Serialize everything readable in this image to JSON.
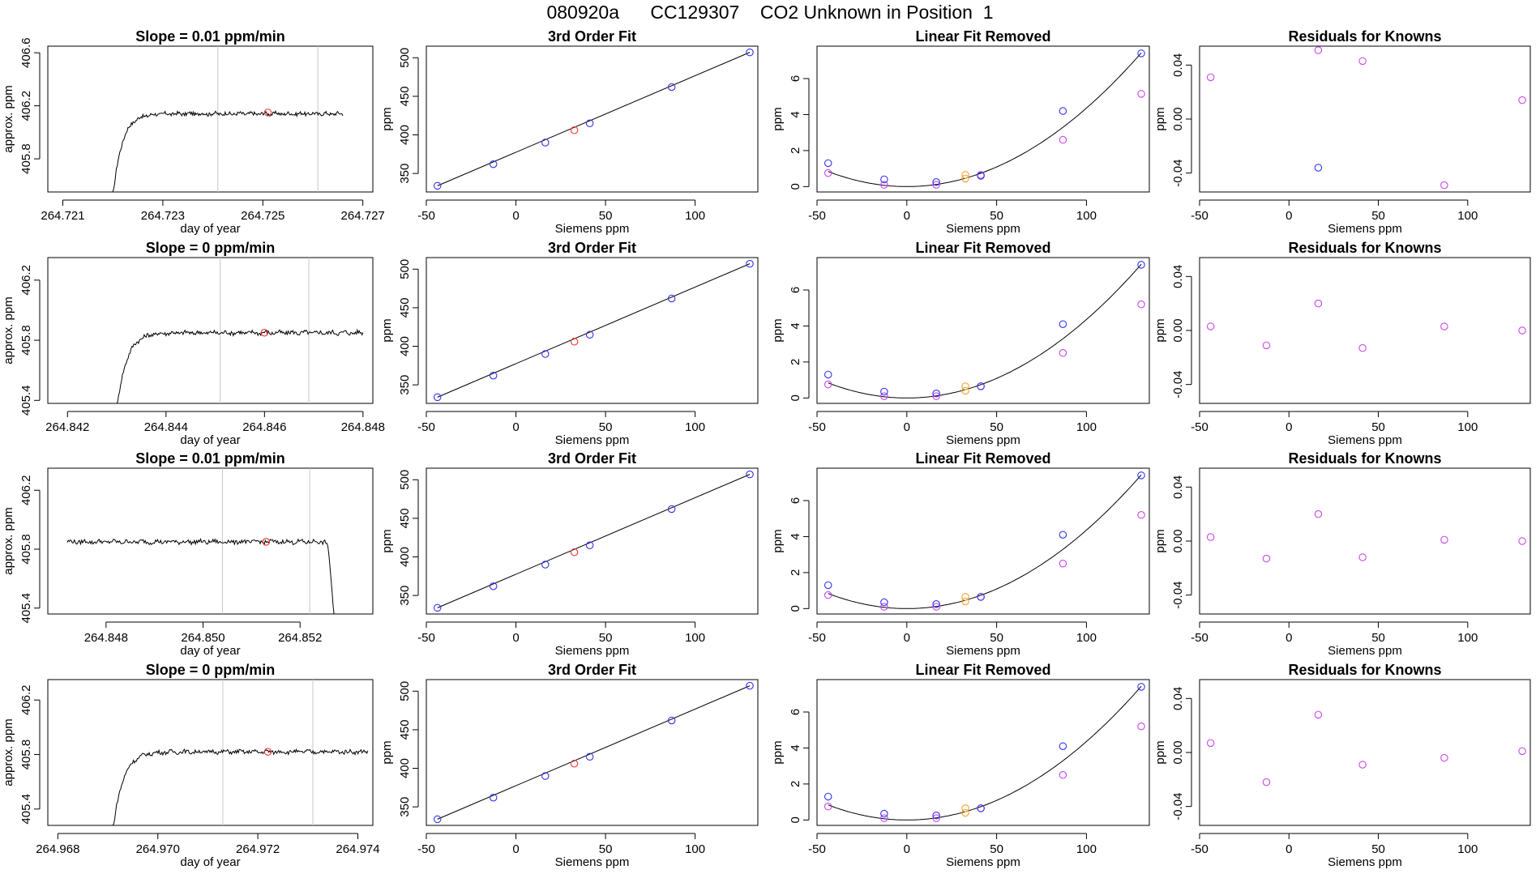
{
  "header": {
    "run_id": "080920a",
    "cylinder": "CC129307",
    "description": "CO2 Unknown in Position  1"
  },
  "labels": {
    "xlabel_time": "day of year",
    "ylabel_time": "approx. ppm",
    "xlabel_siemens": "Siemens ppm",
    "ylabel_ppm": "ppm",
    "title_fit": "3rd Order Fit",
    "title_linear": "Linear Fit Removed",
    "title_resid": "Residuals for Knowns"
  },
  "colors": {
    "known": "#3333ee",
    "unknown": "#ee3333",
    "residual": "#cc44ee",
    "orange": "#f0a030",
    "guide": "#c8c8c8",
    "line": "#000000"
  },
  "chart_data": [
    {
      "row": 1,
      "time_series": {
        "type": "line",
        "title": "Slope =  0.01  ppm/min",
        "xlabel": "day of year",
        "ylabel": "approx. ppm",
        "xlim": [
          264.7207,
          264.7272
        ],
        "ylim": [
          405.55,
          406.65
        ],
        "xticks": [
          "264.721",
          "264.723",
          "264.725",
          "264.727"
        ],
        "xtick_values": [
          264.721,
          264.723,
          264.725,
          264.727
        ],
        "yticks": [
          "405.8",
          "406.2",
          "406.6"
        ],
        "ytick_values": [
          405.8,
          406.2,
          406.6
        ],
        "guides": [
          264.7241,
          264.7261
        ],
        "shape": "rise",
        "x_start": 264.722,
        "x_end": 264.7266,
        "plateau": 406.14,
        "unknown_point": [
          264.7251,
          406.15
        ]
      },
      "fit": {
        "type": "scatter",
        "title": "3rd Order Fit",
        "xlabel": "Siemens ppm",
        "ylabel": "ppm",
        "knowns": [
          [
            -43.8,
            334
          ],
          [
            -12.6,
            362
          ],
          [
            16.4,
            390
          ],
          [
            41.2,
            415
          ],
          [
            86.9,
            462
          ],
          [
            130.5,
            507
          ]
        ],
        "unknown": [
          32.6,
          406
        ]
      },
      "linear_removed": {
        "type": "scatter",
        "title": "Linear Fit Removed",
        "xlabel": "Siemens ppm",
        "ylabel": "ppm",
        "blue": [
          [
            -43.8,
            1.3
          ],
          [
            -12.6,
            0.4
          ],
          [
            16.4,
            0.25
          ],
          [
            41.2,
            0.6
          ],
          [
            86.9,
            4.2
          ],
          [
            130.5,
            7.4
          ]
        ],
        "purple": [
          [
            -43.8,
            0.75
          ],
          [
            -12.6,
            0.1
          ],
          [
            16.4,
            0.1
          ],
          [
            41.2,
            0.65
          ],
          [
            86.9,
            2.6
          ],
          [
            130.5,
            5.15
          ]
        ],
        "orange": [
          [
            32.6,
            0.65
          ],
          [
            32.6,
            0.45
          ]
        ]
      },
      "residuals": {
        "type": "scatter",
        "title": "Residuals for Knowns",
        "xlabel": "Siemens ppm",
        "ylabel": "ppm",
        "purple": [
          [
            -43.8,
            0.031
          ],
          [
            16.4,
            0.051
          ],
          [
            41.2,
            0.043
          ],
          [
            86.9,
            -0.049
          ],
          [
            130.5,
            0.014
          ]
        ],
        "blue": [
          [
            16.4,
            -0.036
          ]
        ]
      }
    },
    {
      "row": 2,
      "time_series": {
        "type": "line",
        "title": "Slope =  0  ppm/min",
        "xlabel": "day of year",
        "ylabel": "approx. ppm",
        "xlim": [
          264.8416,
          264.8482
        ],
        "ylim": [
          405.38,
          406.35
        ],
        "xticks": [
          "264.842",
          "264.844",
          "264.846",
          "264.848"
        ],
        "xtick_values": [
          264.842,
          264.844,
          264.846,
          264.848
        ],
        "yticks": [
          "405.4",
          "405.8",
          "406.2"
        ],
        "ytick_values": [
          405.4,
          405.8,
          406.2
        ],
        "guides": [
          264.8451,
          264.8469
        ],
        "shape": "rise",
        "x_start": 264.843,
        "x_end": 264.848,
        "plateau": 405.85,
        "unknown_point": [
          264.846,
          405.85
        ]
      },
      "fit": {
        "type": "scatter",
        "title": "3rd Order Fit",
        "xlabel": "Siemens ppm",
        "ylabel": "ppm",
        "knowns": [
          [
            -43.8,
            334
          ],
          [
            -12.6,
            362
          ],
          [
            16.4,
            390
          ],
          [
            41.2,
            415
          ],
          [
            86.9,
            462
          ],
          [
            130.5,
            507
          ]
        ],
        "unknown": [
          32.6,
          406
        ]
      },
      "linear_removed": {
        "type": "scatter",
        "title": "Linear Fit Removed",
        "xlabel": "Siemens ppm",
        "ylabel": "ppm",
        "blue": [
          [
            -43.8,
            1.3
          ],
          [
            -12.6,
            0.35
          ],
          [
            16.4,
            0.25
          ],
          [
            41.2,
            0.65
          ],
          [
            86.9,
            4.1
          ],
          [
            130.5,
            7.4
          ]
        ],
        "purple": [
          [
            -43.8,
            0.75
          ],
          [
            -12.6,
            0.1
          ],
          [
            16.4,
            0.1
          ],
          [
            41.2,
            0.65
          ],
          [
            86.9,
            2.5
          ],
          [
            130.5,
            5.2
          ]
        ],
        "orange": [
          [
            32.6,
            0.65
          ],
          [
            32.6,
            0.4
          ]
        ]
      },
      "residuals": {
        "type": "scatter",
        "title": "Residuals for Knowns",
        "xlabel": "Siemens ppm",
        "ylabel": "ppm",
        "purple": [
          [
            -43.8,
            0.003
          ],
          [
            -12.6,
            -0.011
          ],
          [
            16.4,
            0.02
          ],
          [
            41.2,
            -0.013
          ],
          [
            86.9,
            0.003
          ],
          [
            130.5,
            0.0
          ]
        ],
        "blue": []
      }
    },
    {
      "row": 3,
      "time_series": {
        "type": "line",
        "title": "Slope =  0.01  ppm/min",
        "xlabel": "day of year",
        "ylabel": "approx. ppm",
        "xlim": [
          264.8468,
          264.8535
        ],
        "ylim": [
          405.36,
          406.35
        ],
        "xticks": [
          "264.848",
          "264.850",
          "264.852"
        ],
        "xtick_values": [
          264.848,
          264.85,
          264.852
        ],
        "yticks": [
          "405.4",
          "405.8",
          "406.2"
        ],
        "ytick_values": [
          405.4,
          405.8,
          406.2
        ],
        "guides": [
          264.8504,
          264.8522
        ],
        "shape": "fall",
        "x_start": 264.8472,
        "x_end": 264.8527,
        "plateau": 405.85,
        "unknown_point": [
          264.8513,
          405.85
        ]
      },
      "fit": {
        "type": "scatter",
        "title": "3rd Order Fit",
        "xlabel": "Siemens ppm",
        "ylabel": "ppm",
        "knowns": [
          [
            -43.8,
            334
          ],
          [
            -12.6,
            362
          ],
          [
            16.4,
            390
          ],
          [
            41.2,
            415
          ],
          [
            86.9,
            462
          ],
          [
            130.5,
            507
          ]
        ],
        "unknown": [
          32.6,
          406
        ]
      },
      "linear_removed": {
        "type": "scatter",
        "title": "Linear Fit Removed",
        "xlabel": "Siemens ppm",
        "ylabel": "ppm",
        "blue": [
          [
            -43.8,
            1.3
          ],
          [
            -12.6,
            0.35
          ],
          [
            16.4,
            0.25
          ],
          [
            41.2,
            0.65
          ],
          [
            86.9,
            4.1
          ],
          [
            130.5,
            7.4
          ]
        ],
        "purple": [
          [
            -43.8,
            0.75
          ],
          [
            -12.6,
            0.1
          ],
          [
            16.4,
            0.1
          ],
          [
            41.2,
            0.65
          ],
          [
            86.9,
            2.5
          ],
          [
            130.5,
            5.2
          ]
        ],
        "orange": [
          [
            32.6,
            0.65
          ],
          [
            32.6,
            0.4
          ]
        ]
      },
      "residuals": {
        "type": "scatter",
        "title": "Residuals for Knowns",
        "xlabel": "Siemens ppm",
        "ylabel": "ppm",
        "purple": [
          [
            -43.8,
            0.003
          ],
          [
            -12.6,
            -0.013
          ],
          [
            16.4,
            0.02
          ],
          [
            41.2,
            -0.012
          ],
          [
            86.9,
            0.001
          ],
          [
            130.5,
            0.0
          ]
        ],
        "blue": []
      }
    },
    {
      "row": 4,
      "time_series": {
        "type": "line",
        "title": "Slope =  0  ppm/min",
        "xlabel": "day of year",
        "ylabel": "approx. ppm",
        "xlim": [
          264.9678,
          264.9743
        ],
        "ylim": [
          405.28,
          406.35
        ],
        "xticks": [
          "264.968",
          "264.970",
          "264.972",
          "264.974"
        ],
        "xtick_values": [
          264.968,
          264.97,
          264.972,
          264.974
        ],
        "yticks": [
          "405.4",
          "405.8",
          "406.2"
        ],
        "ytick_values": [
          405.4,
          405.8,
          406.2
        ],
        "guides": [
          264.9713,
          264.9731
        ],
        "shape": "rise",
        "x_start": 264.9691,
        "x_end": 264.9742,
        "plateau": 405.82,
        "unknown_point": [
          264.9722,
          405.82
        ]
      },
      "fit": {
        "type": "scatter",
        "title": "3rd Order Fit",
        "xlabel": "Siemens ppm",
        "ylabel": "ppm",
        "knowns": [
          [
            -43.8,
            334
          ],
          [
            -12.6,
            362
          ],
          [
            16.4,
            390
          ],
          [
            41.2,
            415
          ],
          [
            86.9,
            462
          ],
          [
            130.5,
            507
          ]
        ],
        "unknown": [
          32.6,
          406
        ]
      },
      "linear_removed": {
        "type": "scatter",
        "title": "Linear Fit Removed",
        "xlabel": "Siemens ppm",
        "ylabel": "ppm",
        "blue": [
          [
            -43.8,
            1.3
          ],
          [
            -12.6,
            0.35
          ],
          [
            16.4,
            0.25
          ],
          [
            41.2,
            0.65
          ],
          [
            86.9,
            4.1
          ],
          [
            130.5,
            7.4
          ]
        ],
        "purple": [
          [
            -43.8,
            0.75
          ],
          [
            -12.6,
            0.1
          ],
          [
            16.4,
            0.1
          ],
          [
            41.2,
            0.65
          ],
          [
            86.9,
            2.5
          ],
          [
            130.5,
            5.2
          ]
        ],
        "orange": [
          [
            32.6,
            0.65
          ],
          [
            32.6,
            0.4
          ]
        ]
      },
      "residuals": {
        "type": "scatter",
        "title": "Residuals for Knowns",
        "xlabel": "Siemens ppm",
        "ylabel": "ppm",
        "purple": [
          [
            -43.8,
            0.007
          ],
          [
            -12.6,
            -0.022
          ],
          [
            16.4,
            0.028
          ],
          [
            41.2,
            -0.009
          ],
          [
            86.9,
            -0.004
          ],
          [
            130.5,
            0.001
          ]
        ],
        "blue": []
      }
    }
  ],
  "shared_axes": {
    "fit": {
      "xlim": [
        -50,
        135
      ],
      "ylim": [
        326,
        515
      ],
      "xticks": [
        "-50",
        "0",
        "50",
        "100"
      ],
      "xtick_values": [
        -50,
        0,
        50,
        100
      ],
      "yticks": [
        "350",
        "400",
        "450",
        "500"
      ],
      "ytick_values": [
        350,
        400,
        450,
        500
      ]
    },
    "linear_removed": {
      "xlim": [
        -50,
        135
      ],
      "ylim": [
        -0.3,
        7.8
      ],
      "xticks": [
        "-50",
        "0",
        "50",
        "100"
      ],
      "xtick_values": [
        -50,
        0,
        50,
        100
      ],
      "yticks": [
        "0",
        "2",
        "4",
        "6"
      ],
      "ytick_values": [
        0,
        2,
        4,
        6
      ],
      "curve_coefficient": 0.000436
    },
    "residuals": {
      "xlim": [
        -50,
        135
      ],
      "ylim": [
        -0.054,
        0.054
      ],
      "xticks": [
        "-50",
        "0",
        "50",
        "100"
      ],
      "xtick_values": [
        -50,
        0,
        50,
        100
      ],
      "yticks": [
        "-0.04",
        "0.00",
        "0.04"
      ],
      "ytick_values": [
        -0.04,
        0.0,
        0.04
      ]
    }
  }
}
